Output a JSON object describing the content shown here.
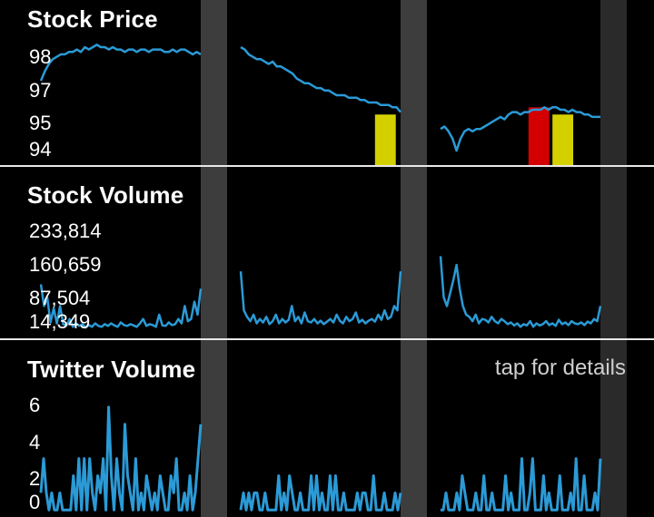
{
  "colors": {
    "line": "#2b9ad6",
    "yellow": "#d4d000",
    "red": "#d40000",
    "gap": "#3d3d3d",
    "gap_dark": "#2a2a2a",
    "hint": "#cfcfcf"
  },
  "hint": "tap for details",
  "chart_data": [
    {
      "type": "line",
      "title": "Stock Price",
      "yticks": [
        "98",
        "97",
        "95",
        "94"
      ],
      "ylim": [
        93.4,
        98.6
      ],
      "segments": [
        {
          "x": [
            0,
            1,
            2,
            3,
            4,
            5,
            6,
            7,
            8,
            9,
            10,
            11,
            12,
            13,
            14,
            15,
            16,
            17,
            18,
            19,
            20,
            21,
            22,
            23,
            24,
            25,
            26,
            27,
            28,
            29,
            30,
            31,
            32,
            33,
            34,
            35,
            36,
            37,
            38,
            39,
            40
          ],
          "y": [
            96.9,
            97.3,
            97.6,
            97.8,
            97.9,
            98.0,
            98.0,
            98.1,
            98.1,
            98.2,
            98.1,
            98.3,
            98.2,
            98.3,
            98.4,
            98.3,
            98.3,
            98.2,
            98.3,
            98.2,
            98.2,
            98.1,
            98.2,
            98.2,
            98.1,
            98.2,
            98.2,
            98.1,
            98.2,
            98.2,
            98.2,
            98.1,
            98.1,
            98.2,
            98.1,
            98.2,
            98.2,
            98.1,
            98.0,
            98.1,
            98.0
          ]
        },
        {
          "x": [
            0,
            1,
            2,
            3,
            4,
            5,
            6,
            7,
            8,
            9,
            10,
            11,
            12,
            13,
            14,
            15,
            16,
            17,
            18,
            19,
            20,
            21,
            22,
            23,
            24,
            25,
            26,
            27,
            28,
            29,
            30,
            31,
            32,
            33,
            34,
            35,
            36,
            37,
            38,
            39,
            40
          ],
          "y": [
            98.3,
            98.2,
            98.0,
            97.9,
            97.8,
            97.8,
            97.7,
            97.6,
            97.7,
            97.5,
            97.5,
            97.4,
            97.3,
            97.2,
            97.0,
            96.9,
            96.8,
            96.8,
            96.7,
            96.6,
            96.6,
            96.5,
            96.5,
            96.4,
            96.3,
            96.3,
            96.3,
            96.2,
            96.2,
            96.2,
            96.1,
            96.1,
            96.0,
            96.0,
            96.0,
            95.9,
            95.9,
            95.9,
            95.8,
            95.8,
            95.6
          ]
        },
        {
          "x": [
            0,
            1,
            2,
            3,
            4,
            5,
            6,
            7,
            8,
            9,
            10,
            11,
            12,
            13,
            14,
            15,
            16,
            17,
            18,
            19,
            20,
            21,
            22,
            23,
            24,
            25,
            26,
            27,
            28,
            29,
            30,
            31,
            32,
            33,
            34,
            35,
            36,
            37,
            38,
            39,
            40
          ],
          "y": [
            94.9,
            95.0,
            94.8,
            94.5,
            94.0,
            94.5,
            94.8,
            94.9,
            94.8,
            94.9,
            94.9,
            95.0,
            95.1,
            95.2,
            95.3,
            95.4,
            95.3,
            95.5,
            95.6,
            95.6,
            95.5,
            95.6,
            95.6,
            95.7,
            95.7,
            95.7,
            95.8,
            95.7,
            95.8,
            95.8,
            95.7,
            95.7,
            95.6,
            95.7,
            95.6,
            95.6,
            95.5,
            95.5,
            95.4,
            95.4,
            95.4
          ]
        }
      ],
      "markers": [
        {
          "segment": 1,
          "color": "yellow",
          "from": 0.84,
          "to": 0.97,
          "top": 95.5
        },
        {
          "segment": 2,
          "color": "red",
          "from": 0.55,
          "to": 0.68,
          "top": 95.8
        },
        {
          "segment": 2,
          "color": "yellow",
          "from": 0.7,
          "to": 0.83,
          "top": 95.5
        }
      ]
    },
    {
      "type": "line",
      "title": "Stock Volume",
      "yticks": [
        "233,814",
        "160,659",
        "87,504",
        "14,349"
      ],
      "ylim": [
        0,
        260000
      ],
      "segments": [
        {
          "x": [
            0,
            1,
            2,
            3,
            4,
            5,
            6,
            7,
            8,
            9,
            10,
            11,
            12,
            13,
            14,
            15,
            16,
            17,
            18,
            19,
            20,
            21,
            22,
            23,
            24,
            25,
            26,
            27,
            28,
            29,
            30,
            31,
            32,
            33,
            34,
            35,
            36,
            37,
            38,
            39,
            40,
            41,
            42,
            43,
            44,
            45,
            46,
            47,
            48,
            49,
            50
          ],
          "y": [
            110000,
            60000,
            80000,
            22000,
            55000,
            20000,
            60000,
            18000,
            15000,
            30000,
            12000,
            20000,
            14000,
            18000,
            10000,
            16000,
            12000,
            20000,
            14000,
            12000,
            18000,
            14000,
            20000,
            15000,
            12000,
            22000,
            16000,
            14000,
            18000,
            15000,
            12000,
            20000,
            30000,
            14000,
            18000,
            16000,
            12000,
            40000,
            15000,
            14000,
            22000,
            16000,
            18000,
            30000,
            20000,
            60000,
            25000,
            30000,
            70000,
            40000,
            100000
          ]
        },
        {
          "x": [
            0,
            1,
            2,
            3,
            4,
            5,
            6,
            7,
            8,
            9,
            10,
            11,
            12,
            13,
            14,
            15,
            16,
            17,
            18,
            19,
            20,
            21,
            22,
            23,
            24,
            25,
            26,
            27,
            28,
            29,
            30,
            31,
            32,
            33,
            34,
            35,
            36,
            37,
            38,
            39,
            40,
            41,
            42,
            43,
            44,
            45,
            46,
            47,
            48,
            49,
            50
          ],
          "y": [
            140000,
            50000,
            35000,
            25000,
            40000,
            20000,
            30000,
            22000,
            35000,
            18000,
            25000,
            40000,
            20000,
            30000,
            22000,
            28000,
            60000,
            25000,
            35000,
            20000,
            45000,
            25000,
            22000,
            30000,
            20000,
            26000,
            18000,
            24000,
            30000,
            22000,
            40000,
            26000,
            20000,
            35000,
            25000,
            30000,
            45000,
            22000,
            28000,
            20000,
            26000,
            30000,
            24000,
            40000,
            28000,
            50000,
            30000,
            35000,
            60000,
            50000,
            140000
          ]
        },
        {
          "x": [
            0,
            1,
            2,
            3,
            4,
            5,
            6,
            7,
            8,
            9,
            10,
            11,
            12,
            13,
            14,
            15,
            16,
            17,
            18,
            19,
            20,
            21,
            22,
            23,
            24,
            25,
            26,
            27,
            28,
            29,
            30,
            31,
            32,
            33,
            34,
            35,
            36,
            37,
            38,
            39,
            40,
            41,
            42,
            43,
            44,
            45,
            46,
            47,
            48,
            49,
            50
          ],
          "y": [
            175000,
            80000,
            60000,
            90000,
            120000,
            155000,
            100000,
            60000,
            40000,
            35000,
            25000,
            40000,
            20000,
            30000,
            28000,
            22000,
            35000,
            25000,
            20000,
            30000,
            25000,
            18000,
            22000,
            15000,
            20000,
            12000,
            18000,
            15000,
            25000,
            12000,
            20000,
            15000,
            18000,
            25000,
            16000,
            20000,
            14000,
            28000,
            18000,
            22000,
            16000,
            25000,
            20000,
            18000,
            22000,
            16000,
            24000,
            20000,
            30000,
            25000,
            60000
          ]
        }
      ]
    },
    {
      "type": "line",
      "title": "Twitter Volume",
      "yticks": [
        "6",
        "4",
        "2",
        "0"
      ],
      "ylim": [
        -0.3,
        7.0
      ],
      "segments": [
        {
          "x": [
            0,
            1,
            2,
            3,
            4,
            5,
            6,
            7,
            8,
            9,
            10,
            11,
            12,
            13,
            14,
            15,
            16,
            17,
            18,
            19,
            20,
            21,
            22,
            23,
            24,
            25,
            26,
            27,
            28,
            29,
            30,
            31,
            32,
            33,
            34,
            35,
            36,
            37,
            38,
            39,
            40,
            41,
            42,
            43,
            44,
            45,
            46,
            47,
            48,
            49,
            50,
            51,
            52,
            53,
            54,
            55,
            56,
            57,
            58,
            59
          ],
          "y": [
            1,
            3,
            1,
            0,
            1,
            0,
            0,
            1,
            0,
            0,
            0,
            0,
            2,
            0,
            3,
            0,
            3,
            0,
            3,
            1,
            0,
            2,
            1,
            3,
            0,
            6,
            2,
            0,
            3,
            1,
            0,
            5,
            2,
            1,
            0,
            3,
            0,
            1,
            0,
            2,
            1,
            0,
            1,
            0,
            2,
            1,
            0,
            0,
            2,
            1,
            3,
            0,
            0,
            1,
            0,
            2,
            0,
            1,
            3,
            5
          ]
        },
        {
          "x": [
            0,
            1,
            2,
            3,
            4,
            5,
            6,
            7,
            8,
            9,
            10,
            11,
            12,
            13,
            14,
            15,
            16,
            17,
            18,
            19,
            20,
            21,
            22,
            23,
            24,
            25,
            26,
            27,
            28,
            29,
            30,
            31,
            32,
            33,
            34,
            35,
            36,
            37,
            38,
            39,
            40,
            41,
            42,
            43,
            44,
            45,
            46,
            47,
            48,
            49,
            50,
            51,
            52,
            53,
            54,
            55,
            56,
            57,
            58,
            59
          ],
          "y": [
            0,
            1,
            0,
            1,
            0,
            1,
            1,
            0,
            0,
            1,
            0,
            0,
            0,
            0,
            2,
            0,
            1,
            0,
            2,
            1,
            0,
            0,
            1,
            0,
            0,
            0,
            2,
            0,
            2,
            0,
            1,
            0,
            0,
            2,
            0,
            2,
            0,
            0,
            1,
            0,
            0,
            0,
            0,
            1,
            0,
            1,
            1,
            0,
            0,
            2,
            0,
            0,
            0,
            1,
            0,
            0,
            0,
            1,
            0,
            1
          ]
        },
        {
          "x": [
            0,
            1,
            2,
            3,
            4,
            5,
            6,
            7,
            8,
            9,
            10,
            11,
            12,
            13,
            14,
            15,
            16,
            17,
            18,
            19,
            20,
            21,
            22,
            23,
            24,
            25,
            26,
            27,
            28,
            29,
            30,
            31,
            32,
            33,
            34,
            35,
            36,
            37,
            38,
            39,
            40,
            41,
            42,
            43,
            44,
            45,
            46,
            47,
            48,
            49,
            50,
            51,
            52,
            53,
            54,
            55,
            56,
            57,
            58,
            59
          ],
          "y": [
            0,
            0,
            1,
            0,
            0,
            0,
            1,
            0,
            2,
            1,
            0,
            0,
            0,
            1,
            0,
            0,
            2,
            0,
            0,
            1,
            0,
            0,
            0,
            0,
            2,
            0,
            1,
            0,
            0,
            0,
            3,
            0,
            0,
            1,
            3,
            0,
            0,
            0,
            2,
            0,
            1,
            0,
            0,
            0,
            2,
            0,
            0,
            0,
            1,
            0,
            3,
            0,
            0,
            2,
            0,
            0,
            0,
            1,
            0,
            3
          ]
        }
      ]
    }
  ]
}
